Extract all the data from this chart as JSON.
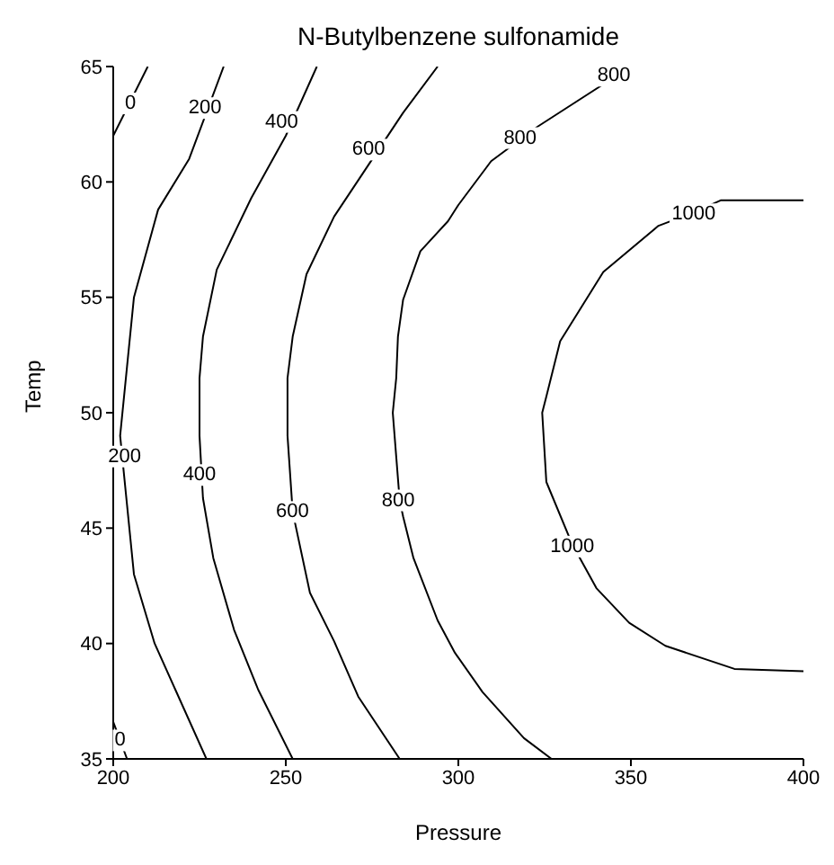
{
  "chart_data": {
    "type": "line",
    "title": "N-Butylbenzene sulfonamide",
    "xlabel": "Pressure",
    "ylabel": "Temp",
    "xlim": [
      200,
      400
    ],
    "xticks": [
      200,
      250,
      300,
      350,
      400
    ],
    "ylim": [
      35,
      65
    ],
    "yticks": [
      35,
      40,
      45,
      50,
      55,
      60,
      65
    ],
    "marker": "none",
    "line_style": "solid",
    "series": [
      {
        "color": "#000000",
        "x": [
          210,
          200
        ],
        "values": [
          65,
          62
        ]
      },
      {
        "color": "#000000",
        "x": [
          200,
          204
        ],
        "values": [
          36.6,
          35
        ]
      },
      {
        "color": "#000000",
        "x": [
          232,
          222,
          213,
          206,
          204,
          202,
          204,
          206,
          212,
          218,
          227
        ],
        "values": [
          65,
          61,
          58.8,
          55,
          52,
          49,
          46,
          43,
          40,
          38,
          35
        ]
      },
      {
        "color": "#000000",
        "x": [
          259,
          250,
          240,
          230,
          226,
          225,
          225,
          226,
          229,
          235,
          242,
          252
        ],
        "values": [
          65,
          62,
          59.3,
          56.2,
          53.3,
          51.5,
          49,
          46.3,
          43.7,
          40.6,
          38,
          35
        ]
      },
      {
        "color": "#000000",
        "x": [
          294,
          284,
          264,
          256,
          252,
          250.5,
          250.5,
          252,
          257,
          264,
          271,
          283
        ],
        "values": [
          65,
          63,
          58.5,
          56,
          53.3,
          51.5,
          49,
          45.7,
          42.2,
          40.1,
          37.7,
          35
        ]
      },
      {
        "color": "#000000",
        "x": [
          350,
          323,
          309.5,
          300,
          297,
          289,
          284,
          282.5,
          282,
          281,
          283,
          284,
          287,
          294,
          299,
          307,
          319,
          327
        ],
        "values": [
          65,
          62.4,
          60.9,
          59,
          58.3,
          57,
          54.9,
          53.3,
          51.5,
          50,
          46.2,
          45.5,
          43.7,
          41,
          39.6,
          37.9,
          35.9,
          35
        ]
      },
      {
        "color": "#000000",
        "x": [
          400,
          376,
          368.6,
          358,
          342,
          329.5,
          325.5,
          324.3,
          325.5,
          333,
          340,
          349.5,
          360,
          380,
          400
        ],
        "values": [
          59.2,
          59.2,
          58.7,
          58.1,
          56.1,
          53.1,
          50.7,
          50,
          47,
          44.3,
          42.4,
          40.9,
          39.9,
          38.9,
          38.8
        ]
      }
    ],
    "annotations": [
      {
        "text": "0",
        "x": 205,
        "y": 63.4
      },
      {
        "text": "0",
        "x": 202,
        "y": 35.8
      },
      {
        "text": "200",
        "x": 226.6,
        "y": 63.2
      },
      {
        "text": "200",
        "x": 203.3,
        "y": 48.1
      },
      {
        "text": "400",
        "x": 248.8,
        "y": 62.6
      },
      {
        "text": "400",
        "x": 225,
        "y": 47.3
      },
      {
        "text": "600",
        "x": 274,
        "y": 61.4
      },
      {
        "text": "600",
        "x": 251.9,
        "y": 45.7
      },
      {
        "text": "800",
        "x": 345.1,
        "y": 64.6
      },
      {
        "text": "800",
        "x": 317.9,
        "y": 61.9
      },
      {
        "text": "800",
        "x": 282.6,
        "y": 46.2
      },
      {
        "text": "1000",
        "x": 368.2,
        "y": 58.6
      },
      {
        "text": "1000",
        "x": 333,
        "y": 44.2
      }
    ]
  }
}
